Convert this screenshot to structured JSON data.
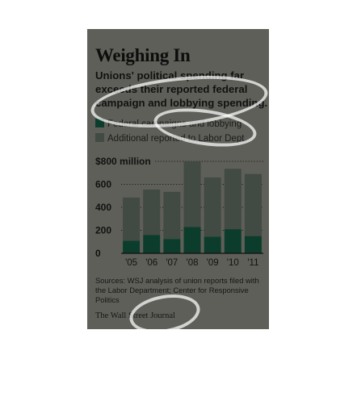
{
  "title": "Weighing In",
  "subtitle": "Unions' political spending far exceeds their reported federal campaign and lobbying spending.",
  "legend": [
    {
      "label": "Federal campaigns and lobbying",
      "color": "#0c3d2c"
    },
    {
      "label": "Additional reported to Labor Dept.",
      "color": "#414a43"
    }
  ],
  "sources": "Sources: WSJ analysis of union reports filed with the Labor Department; Center for Responsive Politics",
  "publisher": "The Wall Street Journal",
  "colors": {
    "background": "#5f5f59",
    "federal": "#0c3d2c",
    "additional": "#414a43"
  },
  "chart_data": {
    "type": "bar",
    "stacked": true,
    "categories": [
      "'05",
      "'06",
      "'07",
      "'08",
      "'09",
      "'10",
      "'11"
    ],
    "series": [
      {
        "name": "Federal campaigns and lobbying",
        "values": [
          110,
          160,
          125,
          230,
          145,
          210,
          150
        ]
      },
      {
        "name": "Additional reported to Labor Dept.",
        "values": [
          375,
          395,
          410,
          570,
          515,
          525,
          540
        ]
      }
    ],
    "totals": [
      485,
      555,
      535,
      800,
      660,
      735,
      690
    ],
    "ylim": [
      0,
      800
    ],
    "yticks": [
      0,
      200,
      400,
      600,
      800
    ],
    "ytick_labels": [
      "0",
      "200",
      "400",
      "600",
      "$800 million"
    ],
    "grid": "dotted horizontal",
    "legend_position": "top-left"
  }
}
